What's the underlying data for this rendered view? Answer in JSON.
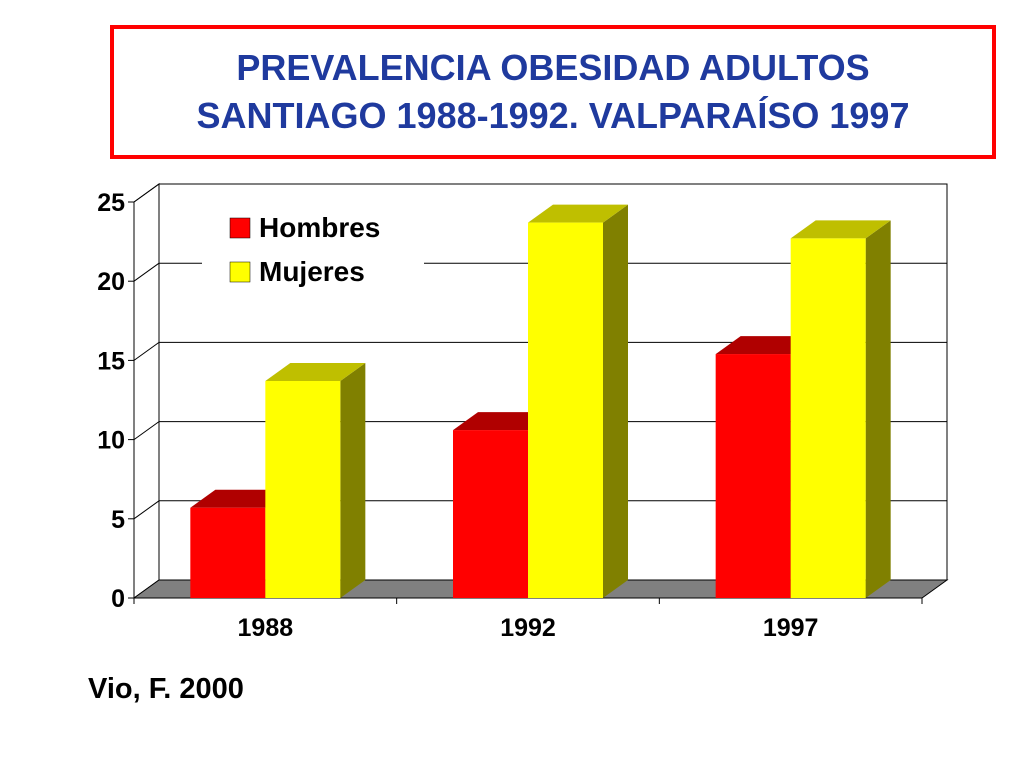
{
  "title": {
    "line1": "PREVALENCIA OBESIDAD ADULTOS",
    "line2": "SANTIAGO 1988-1992. VALPARAÍSO 1997"
  },
  "source": "Vio, F. 2000",
  "colors": {
    "title_text": "#1f3a9e",
    "title_border": "#ff0000",
    "floor": "#808080"
  },
  "chart_data": {
    "type": "bar",
    "categories": [
      "1988",
      "1992",
      "1997"
    ],
    "series": [
      {
        "name": "Hombres",
        "values": [
          5.7,
          10.6,
          15.4
        ],
        "color": "#ff0000",
        "top_color": "#b00000",
        "side_color": "#800000"
      },
      {
        "name": "Mujeres",
        "values": [
          13.7,
          23.7,
          22.7
        ],
        "color": "#ffff00",
        "top_color": "#bfbf00",
        "side_color": "#808000"
      }
    ],
    "ylim": [
      0,
      25
    ],
    "yticks": [
      0,
      5,
      10,
      15,
      20,
      25
    ],
    "legend_position": "top-left",
    "grid": true,
    "three_d": true
  }
}
